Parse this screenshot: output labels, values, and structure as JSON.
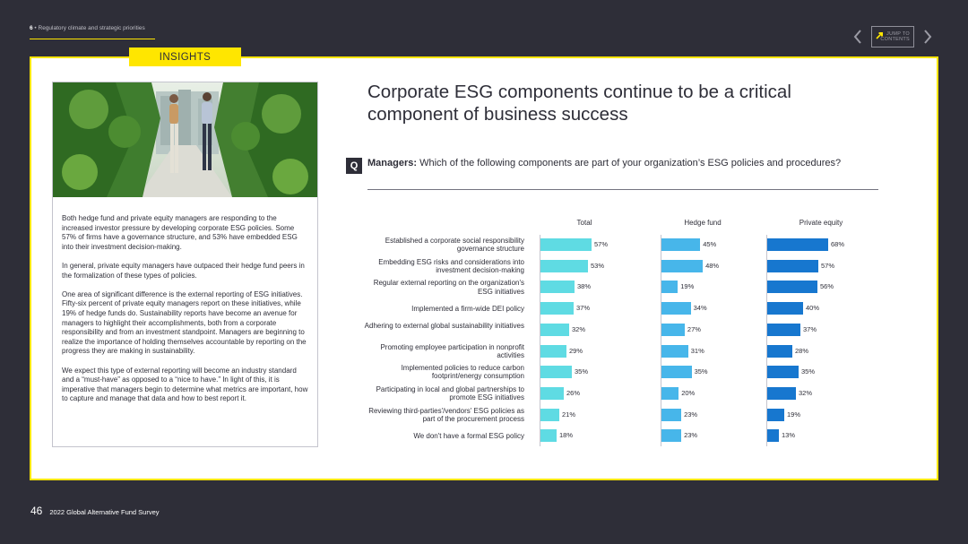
{
  "header": {
    "section_number": "6",
    "section_title": " • Regulatory climate and strategic priorities",
    "jump_label_line1": "JUMP TO",
    "jump_label_line2": "CONTENTS"
  },
  "insights_tab": "INSIGHTS",
  "left_panel": {
    "photo_icon": "photo-two-people-walking-greenery",
    "paragraphs": [
      "Both hedge fund and private equity managers are responding to the increased investor pressure by developing corporate ESG policies. Some 57% of firms have a governance structure, and 53% have embedded ESG into their investment decision-making.",
      "In general, private equity managers have outpaced their hedge fund peers in the formalization of these types of policies.",
      "One area of significant difference is the external reporting of ESG initiatives. Fifty-six percent of private equity managers report on these initiatives, while 19% of hedge funds do. Sustainability reports have become an avenue for managers to highlight their accomplishments, both from a corporate responsibility and from an investment standpoint. Managers are beginning to realize the importance of holding themselves accountable by reporting on the progress they are making in sustainability.",
      "We expect this type of external reporting will become an industry standard and a “must-have” as opposed to a “nice to have.” In light of this, it is imperative that managers begin to determine what metrics are important, how to capture and manage that data and how to best report it."
    ]
  },
  "headline": "Corporate ESG components continue to be a critical component of business success",
  "question": {
    "badge": "Q",
    "label": "Managers:",
    "text": " Which of the following components are part of your organization’s ESG policies and procedures?"
  },
  "chart_data": {
    "type": "bar",
    "orientation": "horizontal",
    "categories": [
      "Established a corporate social responsibility governance structure",
      "Embedding ESG risks and considerations into investment decision-making",
      "Regular external reporting on the organization's ESG initiatives",
      "Implemented a firm-wide DEI policy",
      "Adhering to external global sustainability initiatives",
      "Promoting employee participation in nonprofit activities",
      "Implemented policies to reduce carbon footprint/energy consumption",
      "Participating in local and global partnerships to promote ESG initiatives",
      "Reviewing third-parties'/vendors' ESG policies as part of the procurement process",
      "We don't have a formal ESG policy"
    ],
    "series": [
      {
        "name": "Total",
        "values": [
          57,
          53,
          38,
          37,
          32,
          29,
          35,
          26,
          21,
          18
        ],
        "color": "#5fdbe3"
      },
      {
        "name": "Hedge fund",
        "values": [
          45,
          48,
          19,
          34,
          27,
          31,
          35,
          20,
          23,
          23
        ],
        "color": "#47b6ea"
      },
      {
        "name": "Private equity",
        "values": [
          68,
          57,
          56,
          40,
          37,
          28,
          35,
          32,
          19,
          13
        ],
        "color": "#1777cf"
      }
    ],
    "value_suffix": "%",
    "xlim": [
      0,
      100
    ]
  },
  "footer": {
    "page_number": "46",
    "title": "2022 Global Alternative Fund Survey"
  }
}
